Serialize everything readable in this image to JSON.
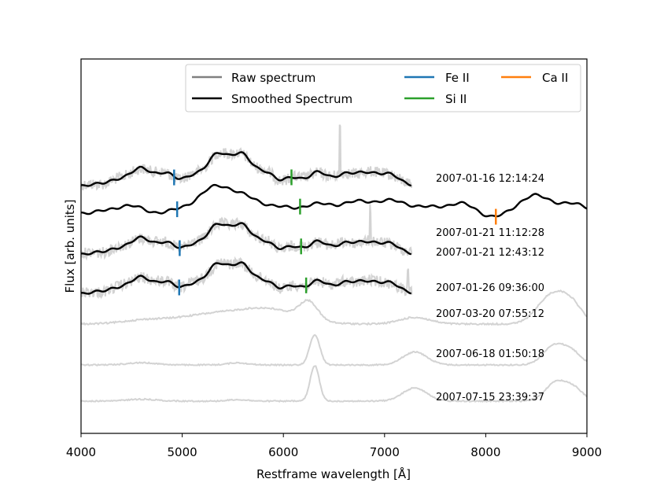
{
  "chart_data": {
    "type": "line",
    "xlabel": "Restframe wavelength [Å]",
    "ylabel": "Flux [arb. units]",
    "xlim": [
      4000,
      9000
    ],
    "xticks": [
      "4000",
      "5000",
      "6000",
      "7000",
      "8000",
      "9000"
    ],
    "legend": {
      "position": "top-right",
      "entries": [
        {
          "label": "Raw spectrum",
          "color": "#808080"
        },
        {
          "label": "Smoothed Spectrum",
          "color": "#000000"
        },
        {
          "label": "Fe II",
          "color": "#1f77b4"
        },
        {
          "label": "Si II",
          "color": "#2ca02c"
        },
        {
          "label": "Ca II",
          "color": "#ff7f0e"
        }
      ]
    },
    "colors": {
      "raw": "#d3d3d3",
      "smooth": "#000000",
      "fe": "#1f77b4",
      "si": "#2ca02c",
      "ca": "#ff7f0e"
    },
    "series": [
      {
        "name": "2007-01-16 12:14:24",
        "label": "2007-01-16 12:14:24",
        "x_range": [
          4000,
          7270
        ],
        "raw": true,
        "smoothed": true,
        "lines": [
          {
            "ion": "Fe II",
            "x": 4920
          },
          {
            "ion": "Si II",
            "x": 6080
          }
        ]
      },
      {
        "name": "2007-01-21 11:12:28",
        "label": "2007-01-21 11:12:28",
        "x_range": [
          4000,
          9000
        ],
        "raw": false,
        "smoothed": true,
        "lines": [
          {
            "ion": "Fe II",
            "x": 4950
          },
          {
            "ion": "Si II",
            "x": 6165
          },
          {
            "ion": "Ca II",
            "x": 8100
          }
        ]
      },
      {
        "name": "2007-01-21 12:43:12",
        "label": "2007-01-21 12:43:12",
        "x_range": [
          4000,
          7270
        ],
        "raw": true,
        "smoothed": true,
        "lines": [
          {
            "ion": "Fe II",
            "x": 4975
          },
          {
            "ion": "Si II",
            "x": 6175
          }
        ]
      },
      {
        "name": "2007-01-26 09:36:00",
        "label": "2007-01-26 09:36:00",
        "x_range": [
          4000,
          7270
        ],
        "raw": true,
        "smoothed": true,
        "lines": [
          {
            "ion": "Fe II",
            "x": 4970
          },
          {
            "ion": "Si II",
            "x": 6225
          }
        ]
      },
      {
        "name": "2007-03-20 07:55:12",
        "label": "2007-03-20 07:55:12",
        "x_range": [
          4000,
          9000
        ],
        "raw": true,
        "smoothed": false,
        "lines": []
      },
      {
        "name": "2007-06-18 01:50:18",
        "label": "2007-06-18 01:50:18",
        "x_range": [
          4000,
          9000
        ],
        "raw": true,
        "smoothed": false,
        "lines": []
      },
      {
        "name": "2007-07-15 23:39:37",
        "label": "2007-07-15 23:39:37",
        "x_range": [
          4000,
          9000
        ],
        "raw": true,
        "smoothed": false,
        "lines": []
      }
    ]
  }
}
